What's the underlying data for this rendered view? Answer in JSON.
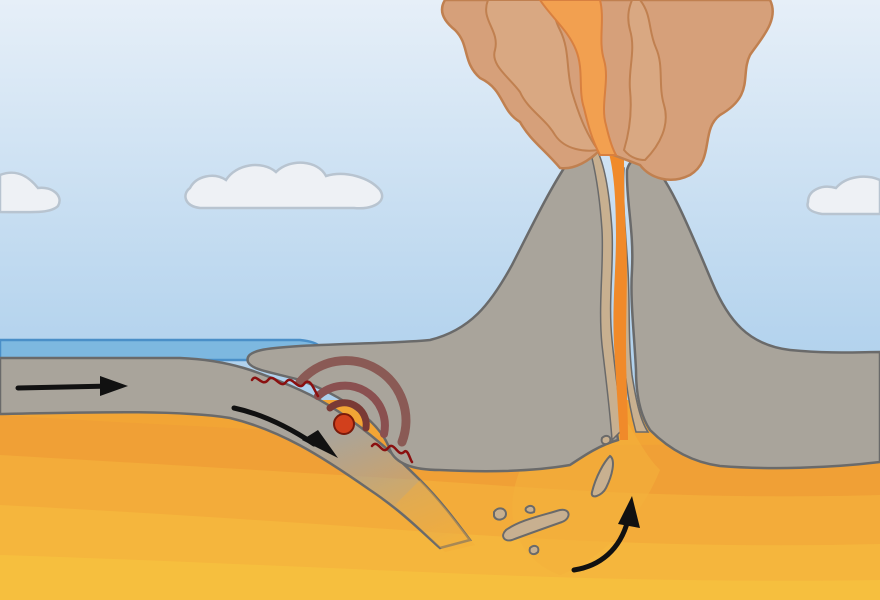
{
  "diagram": {
    "labels": [],
    "colors": {
      "sky_top": "#d6e6f5",
      "sky_bottom": "#a9cdeb",
      "cloud": "#eef1f5",
      "cloud_stroke": "#b8c4d0",
      "ocean": "#7db8e0",
      "ocean_stroke": "#4a8fc8",
      "plate": "#a9a49b",
      "plate_stroke": "#6a6a6a",
      "mantle_top": "#f0a036",
      "mantle_mid": "#f2a535",
      "mantle_bottom": "#f6bf3e",
      "magma": "#f08a2a",
      "magma_light": "#f6a54a",
      "ash": "#d6a07a",
      "ash_stroke": "#c08050",
      "conduit_side": "#c8b090",
      "quake_focus": "#d2401c",
      "quake_ring": "#8a5050",
      "seismic_wave": "#8a1010",
      "arrow": "#111111",
      "rock_fragment": "#c8b090"
    },
    "elements": {
      "motion_arrows": 3,
      "clouds": 3,
      "rock_fragments": 6,
      "quake_rings": 3
    }
  }
}
